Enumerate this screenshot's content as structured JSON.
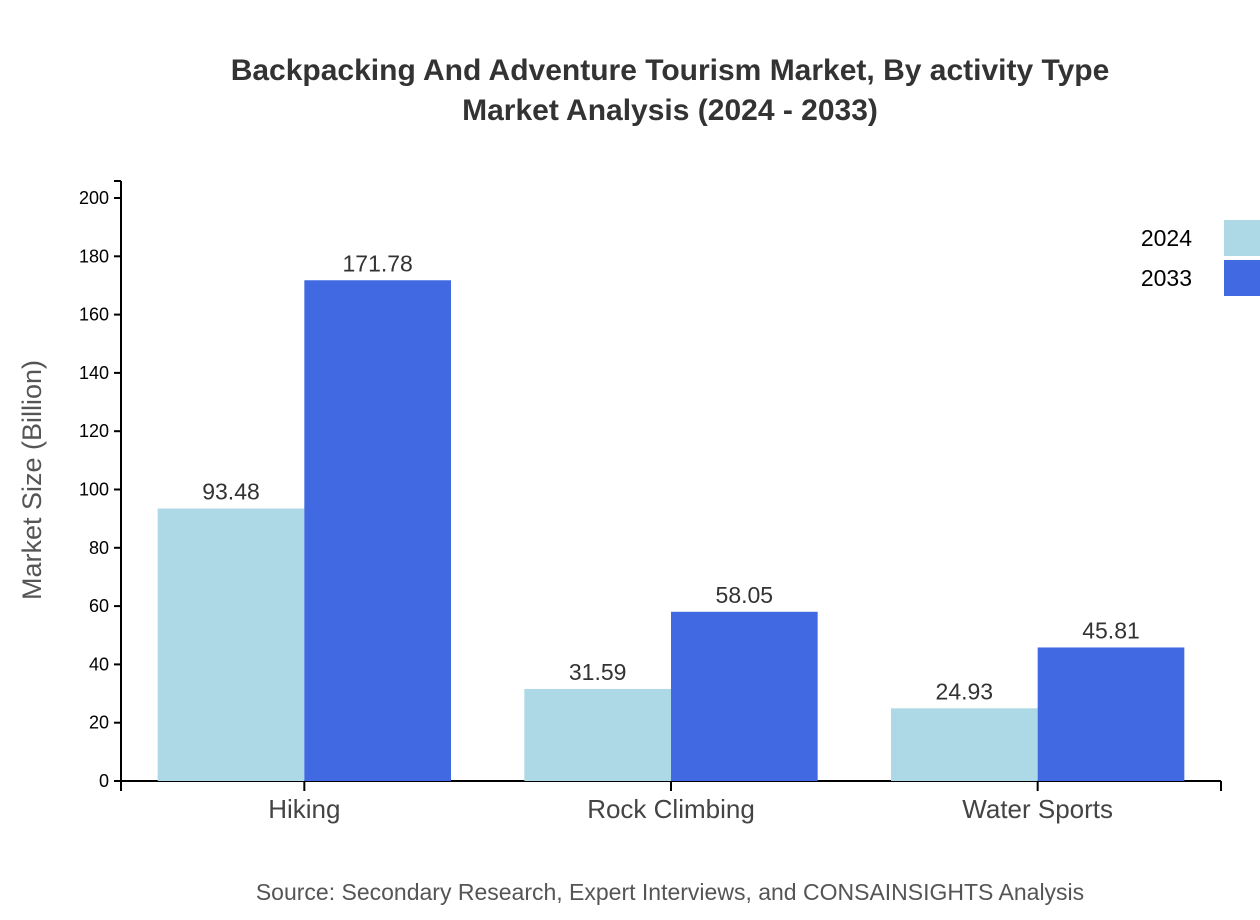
{
  "chart_data": {
    "type": "bar",
    "title": "Backpacking And Adventure Tourism Market, By activity Type",
    "subtitle": "Market Analysis (2024 - 2033)",
    "xlabel": "",
    "ylabel": "Market Size (Billion)",
    "ylim": [
      0,
      200
    ],
    "yticks": [
      0,
      20,
      40,
      60,
      80,
      100,
      120,
      140,
      160,
      180,
      200
    ],
    "categories": [
      "Hiking",
      "Rock Climbing",
      "Water Sports"
    ],
    "series": [
      {
        "name": "2024",
        "color": "#ADD8E6",
        "values": [
          93.48,
          31.59,
          24.93
        ]
      },
      {
        "name": "2033",
        "color": "#4169E1",
        "values": [
          171.78,
          58.05,
          45.81
        ]
      }
    ],
    "legend_position": "top-right",
    "grid": false,
    "source": "Source: Secondary Research, Expert Interviews, and CONSAINSIGHTS Analysis"
  }
}
